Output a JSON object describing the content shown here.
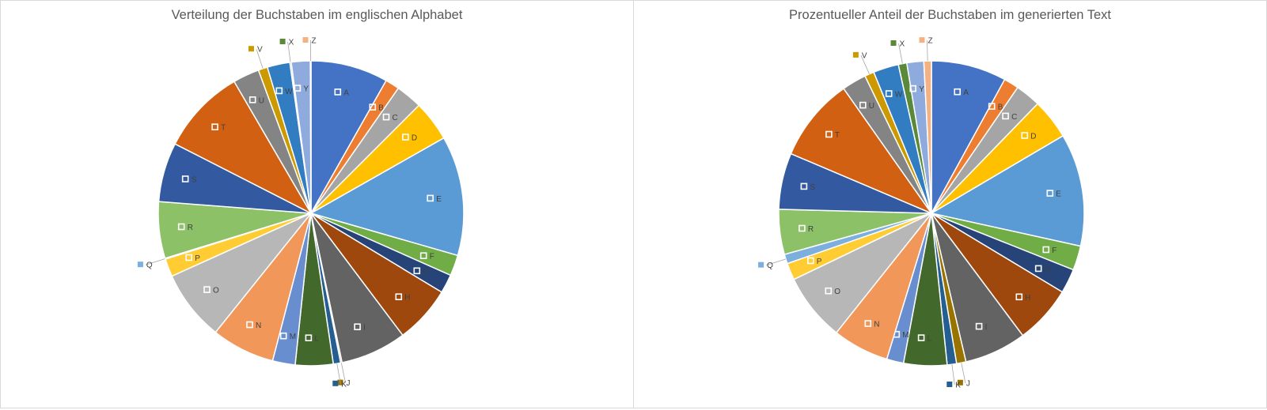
{
  "chart_data": [
    {
      "type": "pie",
      "title": "Verteilung der Buchstaben im englischen Alphabet",
      "categories": [
        "A",
        "B",
        "C",
        "D",
        "E",
        "F",
        "G",
        "H",
        "I",
        "J",
        "K",
        "L",
        "M",
        "N",
        "O",
        "P",
        "Q",
        "R",
        "S",
        "T",
        "U",
        "V",
        "W",
        "X",
        "Y",
        "Z"
      ],
      "values": [
        8.2,
        1.5,
        2.8,
        4.3,
        12.7,
        2.2,
        2.0,
        6.1,
        7.0,
        0.15,
        0.77,
        4.0,
        2.4,
        6.7,
        7.5,
        1.9,
        0.1,
        6.0,
        6.3,
        9.1,
        2.8,
        0.98,
        2.4,
        0.15,
        2.0,
        0.07
      ],
      "legend": "none"
    },
    {
      "type": "pie",
      "title": "Prozentueller Anteil der Buchstaben im generierten Text",
      "categories": [
        "A",
        "B",
        "C",
        "D",
        "E",
        "F",
        "G",
        "H",
        "I",
        "J",
        "K",
        "L",
        "M",
        "N",
        "O",
        "P",
        "Q",
        "R",
        "S",
        "T",
        "U",
        "V",
        "W",
        "X",
        "Y",
        "Z"
      ],
      "values": [
        8.0,
        1.6,
        2.7,
        4.3,
        12.0,
        2.6,
        2.6,
        6.2,
        6.6,
        1.0,
        1.0,
        4.6,
        1.8,
        6.0,
        7.2,
        1.8,
        1.0,
        4.8,
        6.0,
        8.9,
        2.6,
        1.0,
        2.7,
        0.9,
        1.8,
        0.8
      ],
      "legend": "none"
    }
  ],
  "colors": [
    "#4472C4",
    "#ED7D31",
    "#A5A5A5",
    "#FFC000",
    "#5B9BD5",
    "#70AD47",
    "#264478",
    "#9E480E",
    "#636363",
    "#997300",
    "#255E91",
    "#43682B",
    "#698ED0",
    "#F1975A",
    "#B7B7B7",
    "#FFCD33",
    "#7CAFDD",
    "#8CC168",
    "#335AA1",
    "#D26012",
    "#848484",
    "#CC9A00",
    "#327DC2",
    "#5A8A39",
    "#8FAADC",
    "#F4B183"
  ]
}
